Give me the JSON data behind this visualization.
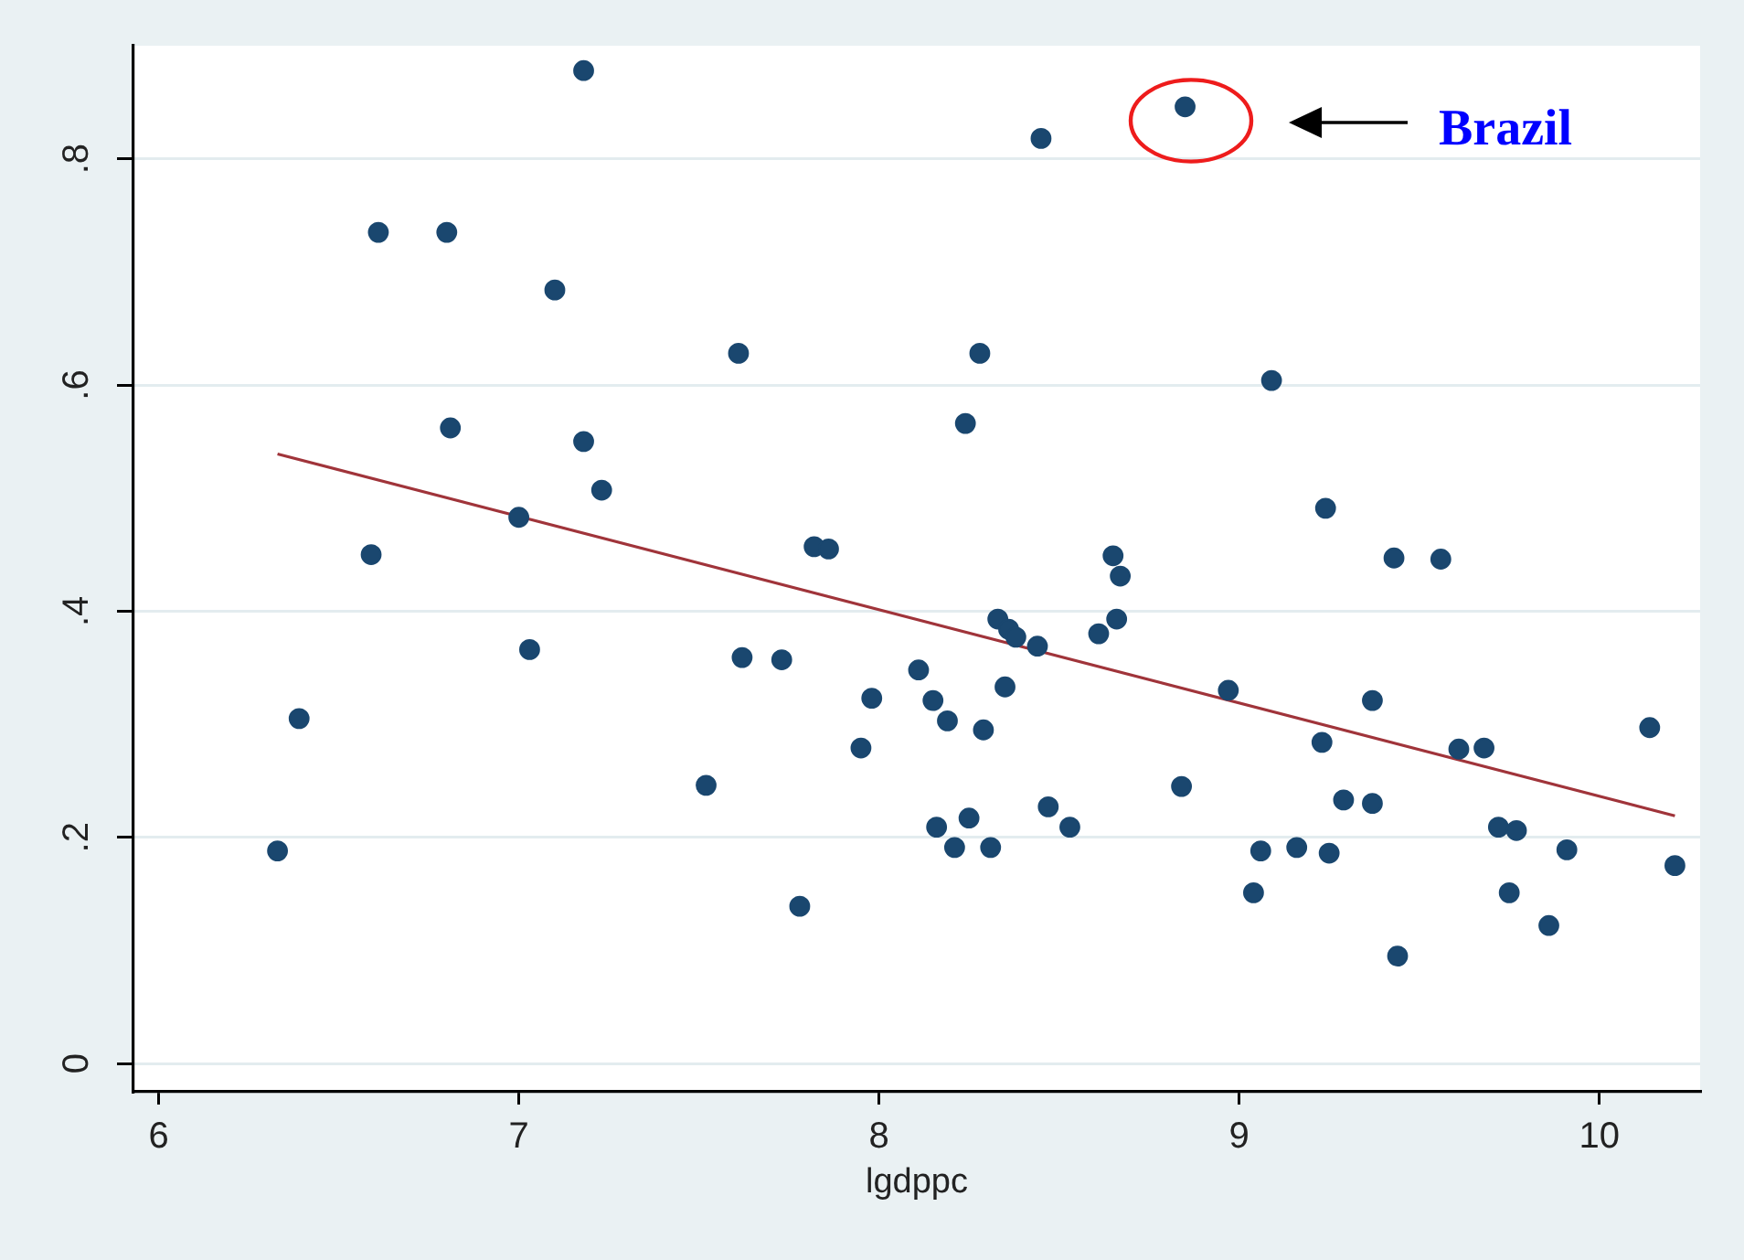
{
  "chart_data": {
    "type": "scatter",
    "xlabel": "lgdppc",
    "xlim": [
      5.93,
      10.28
    ],
    "ylim": [
      -0.025,
      0.9
    ],
    "xticks": [
      6,
      7,
      8,
      9,
      10
    ],
    "yticks": [
      0,
      {
        "value": 0.2,
        "label": ".2"
      },
      {
        "value": 0.4,
        "label": ".4"
      },
      {
        "value": 0.6,
        "label": ".6"
      },
      {
        "value": 0.8,
        "label": ".8"
      }
    ],
    "grid": "y",
    "marker": "circle",
    "series": [
      {
        "color": "#1a476f",
        "x": [
          6.33,
          6.39,
          6.59,
          6.61,
          6.8,
          6.81,
          7.0,
          7.03,
          7.1,
          7.18,
          7.18,
          7.23,
          7.52,
          7.61,
          7.62,
          7.73,
          7.78,
          7.82,
          7.86,
          7.95,
          7.98,
          8.11,
          8.15,
          8.16,
          8.19,
          8.21,
          8.24,
          8.25,
          8.28,
          8.29,
          8.31,
          8.33,
          8.35,
          8.36,
          8.38,
          8.44,
          8.45,
          8.47,
          8.53,
          8.61,
          8.65,
          8.66,
          8.67,
          8.84,
          8.85,
          8.97,
          9.04,
          9.06,
          9.09,
          9.16,
          9.23,
          9.24,
          9.25,
          9.29,
          9.37,
          9.37,
          9.43,
          9.44,
          9.56,
          9.61,
          9.68,
          9.72,
          9.75,
          9.77,
          9.86,
          9.91,
          10.14,
          10.21
        ],
        "values": [
          0.188,
          0.305,
          0.45,
          0.735,
          0.735,
          0.562,
          0.483,
          0.366,
          0.684,
          0.878,
          0.55,
          0.507,
          0.246,
          0.628,
          0.359,
          0.357,
          0.139,
          0.457,
          0.455,
          0.279,
          0.323,
          0.348,
          0.321,
          0.209,
          0.303,
          0.191,
          0.566,
          0.217,
          0.628,
          0.295,
          0.191,
          0.393,
          0.333,
          0.384,
          0.377,
          0.369,
          0.818,
          0.227,
          0.209,
          0.38,
          0.449,
          0.393,
          0.431,
          0.245,
          0.846,
          0.33,
          0.151,
          0.188,
          0.604,
          0.191,
          0.284,
          0.491,
          0.186,
          0.233,
          0.321,
          0.23,
          0.447,
          0.095,
          0.446,
          0.278,
          0.279,
          0.209,
          0.151,
          0.206,
          0.122,
          0.189,
          0.297,
          0.175
        ]
      },
      {
        "type": "line",
        "color": "#a0343a",
        "marker": "none",
        "x": [
          6.33,
          10.21
        ],
        "values": [
          0.539,
          0.219
        ]
      }
    ],
    "annotations": [
      "Brazil"
    ]
  }
}
